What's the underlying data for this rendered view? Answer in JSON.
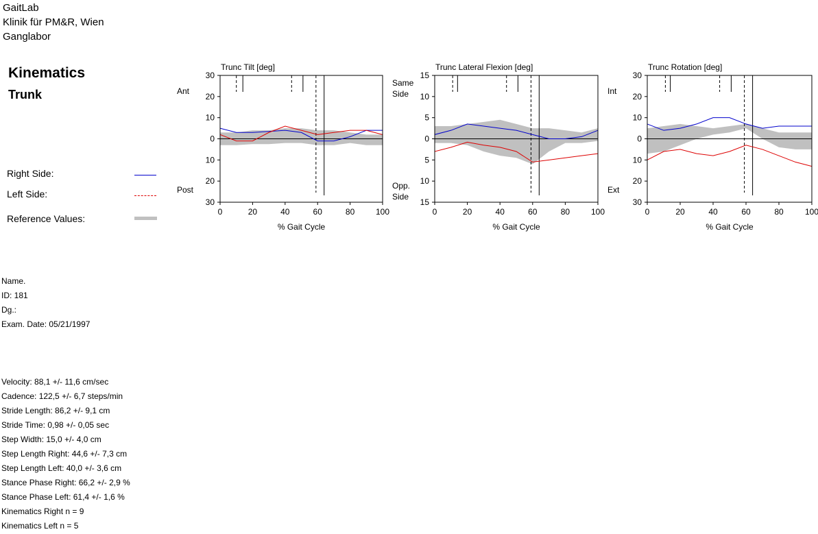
{
  "header": {
    "line1": "GaitLab",
    "line2": "Klinik für PM&R, Wien",
    "line3": "Ganglabor"
  },
  "title": {
    "main": "Kinematics",
    "sub": "Trunk"
  },
  "legend": {
    "right": "Right Side:",
    "left": "Left Side:",
    "reference": "Reference Values:",
    "right_color": "#0000cc",
    "left_color": "#dd0000",
    "reference_color": "#c0c0c0"
  },
  "patient": {
    "name": "Name.",
    "id": "ID: 181",
    "dg": "Dg.:",
    "exam": "Exam. Date: 05/21/1997"
  },
  "stats": [
    "Velocity: 88,1 +/- 11,6 cm/sec",
    "Cadence: 122,5 +/- 6,7 steps/min",
    "Stride Length:  86,2 +/- 9,1 cm",
    "Stride Time:  0,98 +/- 0,05 sec",
    "Step Width: 15,0 +/- 4,0 cm",
    "Step Length Right:  44,6 +/- 7,3 cm",
    "Step Length Left:  40,0 +/- 3,6 cm",
    "Stance Phase Right:  66,2 +/- 2,9 %",
    "Stance Phase Left:  61,4 +/- 1,6 %",
    "Kinematics Right n = 9",
    "Kinematics Left n = 5"
  ],
  "chart_data": [
    {
      "type": "line",
      "title": "Trunc Tilt [deg]",
      "xlabel": "% Gait Cycle",
      "xlim": [
        0,
        100
      ],
      "ylim": [
        -30,
        30
      ],
      "xticks": [
        0,
        20,
        40,
        60,
        80,
        100
      ],
      "yticks": [
        -30,
        -20,
        -10,
        0,
        10,
        20,
        30
      ],
      "ytick_labels": [
        "30",
        "20",
        "10",
        "0",
        "10",
        "20",
        "30"
      ],
      "side_label_top": "Ant",
      "side_label_bottom": "Post",
      "markers": {
        "dashed": [
          10,
          44,
          59
        ],
        "solid": [
          14,
          51,
          64
        ]
      },
      "x": [
        0,
        10,
        20,
        30,
        40,
        50,
        60,
        70,
        80,
        90,
        100
      ],
      "series": [
        {
          "name": "Right Side",
          "color": "#0000cc",
          "values": [
            5,
            3,
            3,
            3.5,
            4,
            3,
            -1,
            -1,
            1,
            4,
            4
          ]
        },
        {
          "name": "Left Side",
          "color": "#dd0000",
          "values": [
            2,
            -1,
            -1,
            3,
            6,
            4,
            2,
            3,
            4,
            4,
            2
          ]
        }
      ],
      "reference": {
        "upper": [
          3,
          3,
          4,
          4,
          5,
          5,
          4,
          4,
          3,
          2,
          2
        ],
        "lower": [
          -3,
          -3,
          -2.5,
          -2.5,
          -2,
          -2,
          -3,
          -3,
          -2,
          -3,
          -3
        ]
      }
    },
    {
      "type": "line",
      "title": "Trunc Lateral Flexion [deg]",
      "xlabel": "% Gait Cycle",
      "xlim": [
        0,
        100
      ],
      "ylim": [
        -15,
        15
      ],
      "xticks": [
        0,
        20,
        40,
        60,
        80,
        100
      ],
      "yticks": [
        -15,
        -10,
        -5,
        0,
        5,
        10,
        15
      ],
      "ytick_labels": [
        "15",
        "10",
        "5",
        "0",
        "5",
        "10",
        "15"
      ],
      "side_label_top": "Same\nSide",
      "side_label_bottom": "Opp.\nSide",
      "markers": {
        "dashed": [
          11,
          44,
          59
        ],
        "solid": [
          14,
          51,
          64
        ]
      },
      "x": [
        0,
        10,
        20,
        30,
        40,
        50,
        60,
        70,
        80,
        90,
        100
      ],
      "series": [
        {
          "name": "Right Side",
          "color": "#0000cc",
          "values": [
            1,
            2,
            3.5,
            3,
            2.5,
            2,
            1,
            0,
            0,
            0.5,
            2
          ]
        },
        {
          "name": "Left Side",
          "color": "#dd0000",
          "values": [
            -3,
            -2,
            -0.8,
            -1.5,
            -2,
            -3,
            -5.5,
            -5,
            -4.5,
            -4,
            -3.5
          ]
        }
      ],
      "reference": {
        "upper": [
          3,
          3,
          3.5,
          4,
          4.5,
          3.5,
          2.5,
          2.5,
          2,
          1.5,
          2.5
        ],
        "lower": [
          -1,
          -1,
          -1.5,
          -3,
          -4,
          -4.5,
          -6,
          -3,
          -1,
          -1,
          -0.5
        ]
      }
    },
    {
      "type": "line",
      "title": "Trunc Rotation [deg]",
      "xlabel": "% Gait Cycle",
      "xlim": [
        0,
        100
      ],
      "ylim": [
        -30,
        30
      ],
      "xticks": [
        0,
        20,
        40,
        60,
        80,
        100
      ],
      "yticks": [
        -30,
        -20,
        -10,
        0,
        10,
        20,
        30
      ],
      "ytick_labels": [
        "30",
        "20",
        "10",
        "0",
        "10",
        "20",
        "30"
      ],
      "side_label_top": "Int",
      "side_label_bottom": "Ext",
      "markers": {
        "dashed": [
          11,
          44,
          59
        ],
        "solid": [
          14,
          51,
          64
        ]
      },
      "x": [
        0,
        10,
        20,
        30,
        40,
        50,
        60,
        70,
        80,
        90,
        100
      ],
      "series": [
        {
          "name": "Right Side",
          "color": "#0000cc",
          "values": [
            7,
            4,
            5,
            7,
            10,
            10,
            7,
            5,
            6,
            6,
            6
          ]
        },
        {
          "name": "Left Side",
          "color": "#dd0000",
          "values": [
            -10,
            -6,
            -5,
            -7,
            -8,
            -6,
            -3,
            -5,
            -8,
            -11,
            -13
          ]
        }
      ],
      "reference": {
        "upper": [
          5,
          6,
          7,
          6,
          5,
          6,
          7,
          5,
          3,
          3,
          3
        ],
        "lower": [
          -7,
          -6,
          -3,
          0,
          2,
          3,
          5,
          0,
          -4,
          -5,
          -5
        ]
      }
    }
  ]
}
